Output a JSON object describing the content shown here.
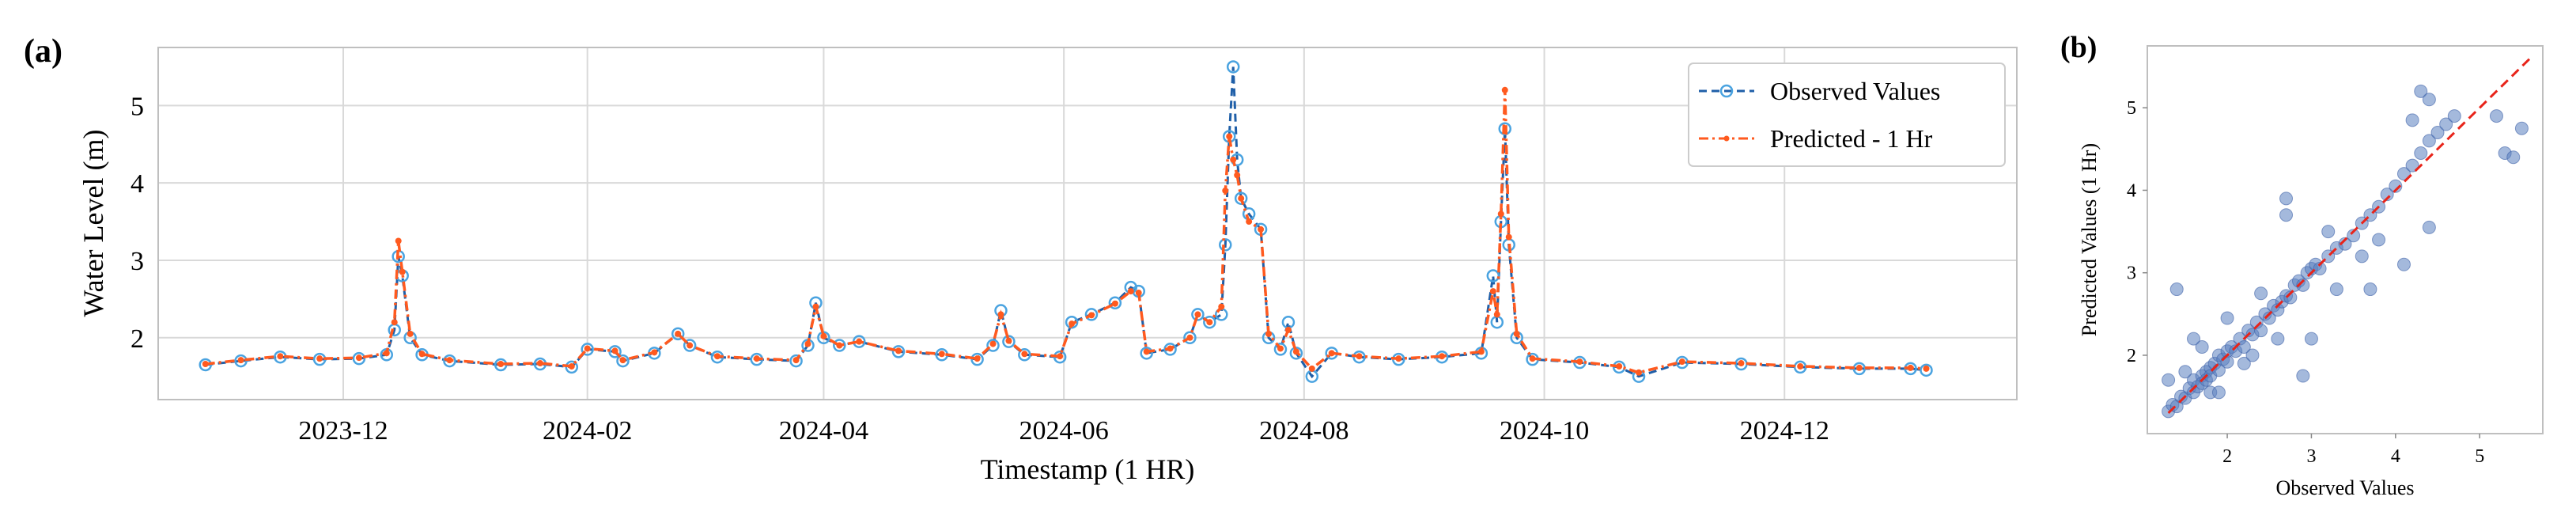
{
  "panels": {
    "a_label": "(a)",
    "b_label": "(b)"
  },
  "colors": {
    "observed_line": "#1f5fa8",
    "observed_marker": "#4aa3e0",
    "predicted": "#ff5a1f",
    "scatter_point": "#5a7fc0",
    "identity_line": "#e8241a",
    "grid": "#d9d9d9",
    "frame": "#bfbfbf"
  },
  "chart_data": [
    {
      "id": "a",
      "type": "line",
      "title": "",
      "xlabel": "Timestamp (1 HR)",
      "ylabel": "Water Level (m)",
      "xlim": [
        "2023-10-15",
        "2025-01-29"
      ],
      "ylim": [
        1.2,
        5.75
      ],
      "x_ticks": [
        {
          "date": "2023-12-01",
          "label": "2023-12"
        },
        {
          "date": "2024-02-01",
          "label": "2024-02"
        },
        {
          "date": "2024-04-01",
          "label": "2024-04"
        },
        {
          "date": "2024-06-01",
          "label": "2024-06"
        },
        {
          "date": "2024-08-01",
          "label": "2024-08"
        },
        {
          "date": "2024-10-01",
          "label": "2024-10"
        },
        {
          "date": "2024-12-01",
          "label": "2024-12"
        }
      ],
      "y_ticks": [
        2,
        3,
        4,
        5
      ],
      "grid": true,
      "legend_position": "top-right",
      "series": [
        {
          "name": "Observed Values",
          "style": "dashed line with hollow circle markers",
          "points": [
            [
              "2023-10-27",
              1.65
            ],
            [
              "2023-11-05",
              1.7
            ],
            [
              "2023-11-15",
              1.75
            ],
            [
              "2023-11-25",
              1.72
            ],
            [
              "2023-12-05",
              1.73
            ],
            [
              "2023-12-12",
              1.78
            ],
            [
              "2023-12-14",
              2.1
            ],
            [
              "2023-12-15",
              3.05
            ],
            [
              "2023-12-16",
              2.8
            ],
            [
              "2023-12-18",
              2.0
            ],
            [
              "2023-12-21",
              1.78
            ],
            [
              "2023-12-28",
              1.7
            ],
            [
              "2024-01-10",
              1.65
            ],
            [
              "2024-01-20",
              1.66
            ],
            [
              "2024-01-28",
              1.62
            ],
            [
              "2024-02-01",
              1.85
            ],
            [
              "2024-02-08",
              1.82
            ],
            [
              "2024-02-10",
              1.7
            ],
            [
              "2024-02-18",
              1.8
            ],
            [
              "2024-02-24",
              2.05
            ],
            [
              "2024-02-27",
              1.9
            ],
            [
              "2024-03-05",
              1.75
            ],
            [
              "2024-03-15",
              1.72
            ],
            [
              "2024-03-25",
              1.7
            ],
            [
              "2024-03-28",
              1.9
            ],
            [
              "2024-03-30",
              2.45
            ],
            [
              "2024-04-01",
              2.0
            ],
            [
              "2024-04-05",
              1.9
            ],
            [
              "2024-04-10",
              1.95
            ],
            [
              "2024-04-20",
              1.82
            ],
            [
              "2024-05-01",
              1.78
            ],
            [
              "2024-05-10",
              1.72
            ],
            [
              "2024-05-14",
              1.9
            ],
            [
              "2024-05-16",
              2.35
            ],
            [
              "2024-05-18",
              1.95
            ],
            [
              "2024-05-22",
              1.78
            ],
            [
              "2024-05-31",
              1.75
            ],
            [
              "2024-06-03",
              2.2
            ],
            [
              "2024-06-08",
              2.3
            ],
            [
              "2024-06-14",
              2.45
            ],
            [
              "2024-06-18",
              2.65
            ],
            [
              "2024-06-20",
              2.6
            ],
            [
              "2024-06-22",
              1.8
            ],
            [
              "2024-06-28",
              1.85
            ],
            [
              "2024-07-03",
              2.0
            ],
            [
              "2024-07-05",
              2.3
            ],
            [
              "2024-07-08",
              2.2
            ],
            [
              "2024-07-11",
              2.3
            ],
            [
              "2024-07-12",
              3.2
            ],
            [
              "2024-07-13",
              4.6
            ],
            [
              "2024-07-14",
              5.5
            ],
            [
              "2024-07-15",
              4.3
            ],
            [
              "2024-07-16",
              3.8
            ],
            [
              "2024-07-18",
              3.6
            ],
            [
              "2024-07-21",
              3.4
            ],
            [
              "2024-07-23",
              2.0
            ],
            [
              "2024-07-26",
              1.85
            ],
            [
              "2024-07-28",
              2.2
            ],
            [
              "2024-07-30",
              1.8
            ],
            [
              "2024-08-03",
              1.5
            ],
            [
              "2024-08-08",
              1.8
            ],
            [
              "2024-08-15",
              1.75
            ],
            [
              "2024-08-25",
              1.72
            ],
            [
              "2024-09-05",
              1.75
            ],
            [
              "2024-09-15",
              1.8
            ],
            [
              "2024-09-18",
              2.8
            ],
            [
              "2024-09-19",
              2.2
            ],
            [
              "2024-09-20",
              3.5
            ],
            [
              "2024-09-21",
              4.7
            ],
            [
              "2024-09-22",
              3.2
            ],
            [
              "2024-09-24",
              2.0
            ],
            [
              "2024-09-28",
              1.72
            ],
            [
              "2024-10-10",
              1.68
            ],
            [
              "2024-10-20",
              1.62
            ],
            [
              "2024-10-25",
              1.5
            ],
            [
              "2024-11-05",
              1.68
            ],
            [
              "2024-11-20",
              1.66
            ],
            [
              "2024-12-05",
              1.62
            ],
            [
              "2024-12-20",
              1.6
            ],
            [
              "2025-01-02",
              1.6
            ],
            [
              "2025-01-06",
              1.58
            ]
          ]
        },
        {
          "name": "Predicted - 1 Hr",
          "style": "dash-dot line with small dot markers",
          "points": [
            [
              "2023-10-27",
              1.66
            ],
            [
              "2023-11-05",
              1.71
            ],
            [
              "2023-11-15",
              1.76
            ],
            [
              "2023-11-25",
              1.73
            ],
            [
              "2023-12-05",
              1.74
            ],
            [
              "2023-12-12",
              1.8
            ],
            [
              "2023-12-14",
              2.2
            ],
            [
              "2023-12-15",
              3.25
            ],
            [
              "2023-12-16",
              2.85
            ],
            [
              "2023-12-18",
              2.05
            ],
            [
              "2023-12-21",
              1.79
            ],
            [
              "2023-12-28",
              1.71
            ],
            [
              "2024-01-10",
              1.66
            ],
            [
              "2024-01-20",
              1.67
            ],
            [
              "2024-01-28",
              1.63
            ],
            [
              "2024-02-01",
              1.86
            ],
            [
              "2024-02-08",
              1.83
            ],
            [
              "2024-02-10",
              1.71
            ],
            [
              "2024-02-18",
              1.81
            ],
            [
              "2024-02-24",
              2.05
            ],
            [
              "2024-02-27",
              1.9
            ],
            [
              "2024-03-05",
              1.76
            ],
            [
              "2024-03-15",
              1.73
            ],
            [
              "2024-03-25",
              1.71
            ],
            [
              "2024-03-28",
              1.92
            ],
            [
              "2024-03-30",
              2.4
            ],
            [
              "2024-04-01",
              2.02
            ],
            [
              "2024-04-05",
              1.9
            ],
            [
              "2024-04-10",
              1.95
            ],
            [
              "2024-04-20",
              1.83
            ],
            [
              "2024-05-01",
              1.79
            ],
            [
              "2024-05-10",
              1.73
            ],
            [
              "2024-05-14",
              1.92
            ],
            [
              "2024-05-16",
              2.3
            ],
            [
              "2024-05-18",
              1.96
            ],
            [
              "2024-05-22",
              1.79
            ],
            [
              "2024-05-31",
              1.76
            ],
            [
              "2024-06-03",
              2.18
            ],
            [
              "2024-06-08",
              2.29
            ],
            [
              "2024-06-14",
              2.44
            ],
            [
              "2024-06-18",
              2.6
            ],
            [
              "2024-06-20",
              2.58
            ],
            [
              "2024-06-22",
              1.82
            ],
            [
              "2024-06-28",
              1.86
            ],
            [
              "2024-07-03",
              2.0
            ],
            [
              "2024-07-05",
              2.3
            ],
            [
              "2024-07-08",
              2.2
            ],
            [
              "2024-07-11",
              2.4
            ],
            [
              "2024-07-12",
              3.9
            ],
            [
              "2024-07-13",
              4.6
            ],
            [
              "2024-07-14",
              4.3
            ],
            [
              "2024-07-15",
              4.1
            ],
            [
              "2024-07-16",
              3.8
            ],
            [
              "2024-07-18",
              3.5
            ],
            [
              "2024-07-21",
              3.4
            ],
            [
              "2024-07-23",
              2.05
            ],
            [
              "2024-07-26",
              1.86
            ],
            [
              "2024-07-28",
              2.1
            ],
            [
              "2024-07-30",
              1.82
            ],
            [
              "2024-08-03",
              1.6
            ],
            [
              "2024-08-08",
              1.8
            ],
            [
              "2024-08-15",
              1.76
            ],
            [
              "2024-08-25",
              1.73
            ],
            [
              "2024-09-05",
              1.76
            ],
            [
              "2024-09-15",
              1.82
            ],
            [
              "2024-09-18",
              2.6
            ],
            [
              "2024-09-19",
              2.3
            ],
            [
              "2024-09-20",
              3.6
            ],
            [
              "2024-09-21",
              5.2
            ],
            [
              "2024-09-22",
              3.3
            ],
            [
              "2024-09-24",
              2.05
            ],
            [
              "2024-09-28",
              1.73
            ],
            [
              "2024-10-10",
              1.69
            ],
            [
              "2024-10-20",
              1.63
            ],
            [
              "2024-10-25",
              1.55
            ],
            [
              "2024-11-05",
              1.69
            ],
            [
              "2024-11-20",
              1.67
            ],
            [
              "2024-12-05",
              1.63
            ],
            [
              "2024-12-20",
              1.61
            ],
            [
              "2025-01-02",
              1.61
            ],
            [
              "2025-01-06",
              1.6
            ]
          ]
        }
      ]
    },
    {
      "id": "b",
      "type": "scatter",
      "title": "",
      "xlabel": "Observed Values",
      "ylabel": "Predicted Values (1 Hr)",
      "xlim": [
        1.05,
        5.75
      ],
      "ylim": [
        1.05,
        5.75
      ],
      "x_ticks": [
        2,
        3,
        4,
        5
      ],
      "y_ticks": [
        2,
        3,
        4,
        5
      ],
      "grid": false,
      "identity_line": [
        [
          1.3,
          1.3
        ],
        [
          5.6,
          5.6
        ]
      ],
      "points": [
        [
          1.3,
          1.32
        ],
        [
          1.35,
          1.4
        ],
        [
          1.4,
          1.38
        ],
        [
          1.45,
          1.5
        ],
        [
          1.5,
          1.48
        ],
        [
          1.55,
          1.6
        ],
        [
          1.6,
          1.55
        ],
        [
          1.6,
          1.7
        ],
        [
          1.65,
          1.62
        ],
        [
          1.7,
          1.75
        ],
        [
          1.7,
          1.66
        ],
        [
          1.75,
          1.8
        ],
        [
          1.75,
          1.7
        ],
        [
          1.8,
          1.85
        ],
        [
          1.8,
          1.75
        ],
        [
          1.85,
          1.9
        ],
        [
          1.9,
          1.82
        ],
        [
          1.9,
          2.0
        ],
        [
          1.95,
          1.95
        ],
        [
          2.0,
          2.05
        ],
        [
          2.0,
          1.92
        ],
        [
          2.05,
          2.1
        ],
        [
          2.1,
          2.05
        ],
        [
          2.15,
          2.2
        ],
        [
          2.2,
          2.1
        ],
        [
          2.25,
          2.3
        ],
        [
          2.3,
          2.25
        ],
        [
          2.35,
          2.4
        ],
        [
          2.4,
          2.3
        ],
        [
          2.45,
          2.5
        ],
        [
          2.5,
          2.45
        ],
        [
          2.55,
          2.6
        ],
        [
          2.6,
          2.55
        ],
        [
          2.65,
          2.65
        ],
        [
          2.7,
          2.72
        ],
        [
          2.75,
          2.7
        ],
        [
          2.8,
          2.85
        ],
        [
          2.85,
          2.9
        ],
        [
          2.9,
          2.85
        ],
        [
          2.95,
          3.0
        ],
        [
          3.0,
          3.05
        ],
        [
          3.05,
          3.1
        ],
        [
          3.1,
          3.05
        ],
        [
          3.2,
          3.2
        ],
        [
          3.3,
          3.3
        ],
        [
          3.4,
          3.35
        ],
        [
          3.5,
          3.45
        ],
        [
          3.6,
          3.6
        ],
        [
          3.7,
          3.7
        ],
        [
          3.8,
          3.8
        ],
        [
          3.9,
          3.95
        ],
        [
          4.0,
          4.05
        ],
        [
          4.1,
          4.2
        ],
        [
          4.2,
          4.3
        ],
        [
          4.3,
          4.45
        ],
        [
          4.4,
          4.6
        ],
        [
          4.5,
          4.7
        ],
        [
          4.6,
          4.8
        ],
        [
          4.7,
          4.9
        ],
        [
          1.5,
          1.8
        ],
        [
          1.7,
          2.1
        ],
        [
          1.8,
          1.55
        ],
        [
          1.3,
          1.7
        ],
        [
          1.6,
          2.2
        ],
        [
          2.0,
          2.45
        ],
        [
          2.2,
          1.9
        ],
        [
          1.4,
          2.8
        ],
        [
          2.7,
          3.9
        ],
        [
          2.7,
          3.7
        ],
        [
          3.7,
          2.8
        ],
        [
          3.3,
          2.8
        ],
        [
          2.9,
          1.75
        ],
        [
          3.6,
          3.2
        ],
        [
          3.8,
          3.4
        ],
        [
          4.1,
          3.1
        ],
        [
          4.4,
          3.55
        ],
        [
          4.2,
          4.85
        ],
        [
          4.3,
          5.2
        ],
        [
          4.4,
          5.1
        ],
        [
          5.2,
          4.9
        ],
        [
          5.3,
          4.45
        ],
        [
          5.4,
          4.4
        ],
        [
          5.5,
          4.75
        ],
        [
          3.0,
          2.2
        ],
        [
          2.3,
          2.0
        ],
        [
          3.2,
          3.5
        ],
        [
          2.6,
          2.2
        ],
        [
          1.9,
          1.55
        ],
        [
          2.4,
          2.75
        ]
      ]
    }
  ]
}
